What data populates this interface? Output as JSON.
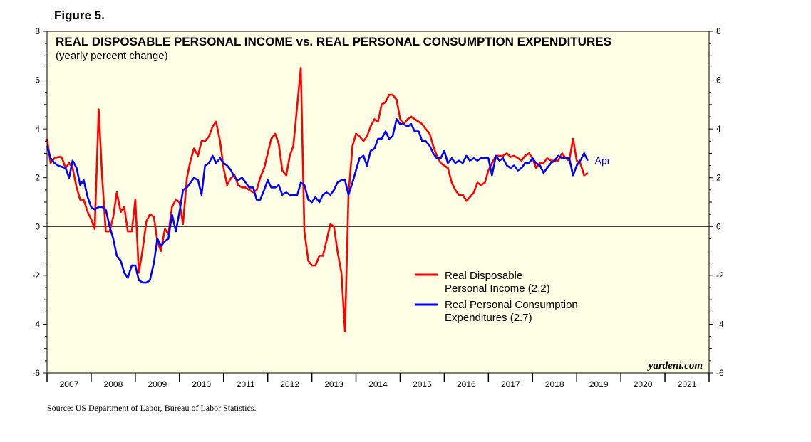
{
  "figure_label": "Figure 5.",
  "source": "Source: US Department of Labor, Bureau of Labor Statistics.",
  "watermark": "yardeni.com",
  "colors": {
    "income": "#ff0000",
    "consumption": "#0000ff",
    "plot_bg": "#ffffe6"
  },
  "chart_data": {
    "type": "line",
    "title": "REAL DISPOSABLE PERSONAL INCOME vs. REAL PERSONAL CONSUMPTION EXPENDITURES",
    "subtitle": "(yearly percent change)",
    "xlabel": "",
    "ylabel": "",
    "xlim": [
      2007.0,
      2022.0
    ],
    "ylim": [
      -6,
      8
    ],
    "y_ticks": [
      -6,
      -4,
      -2,
      0,
      2,
      4,
      6,
      8
    ],
    "x_tick_labels": [
      "2007",
      "2008",
      "2009",
      "2010",
      "2011",
      "2012",
      "2013",
      "2014",
      "2015",
      "2016",
      "2017",
      "2018",
      "2019",
      "2020",
      "2021"
    ],
    "grid": false,
    "zero_line": true,
    "last_point_label": "Apr",
    "legend": [
      {
        "label_line1": "Real Disposable",
        "label_line2": "Personal Income (2.2)"
      },
      {
        "label_line1": "Real Personal Consumption",
        "label_line2": "Expenditures (2.7)"
      }
    ],
    "series": [
      {
        "name": "Real Disposable Personal Income",
        "latest": 2.2,
        "x": [
          2007.0,
          2007.08,
          2007.17,
          2007.25,
          2007.33,
          2007.42,
          2007.5,
          2007.58,
          2007.67,
          2007.75,
          2007.83,
          2007.92,
          2008.0,
          2008.08,
          2008.17,
          2008.25,
          2008.33,
          2008.42,
          2008.5,
          2008.58,
          2008.67,
          2008.75,
          2008.83,
          2008.92,
          2009.0,
          2009.08,
          2009.17,
          2009.25,
          2009.33,
          2009.42,
          2009.5,
          2009.58,
          2009.67,
          2009.75,
          2009.83,
          2009.92,
          2010.0,
          2010.08,
          2010.17,
          2010.25,
          2010.33,
          2010.42,
          2010.5,
          2010.58,
          2010.67,
          2010.75,
          2010.83,
          2010.92,
          2011.0,
          2011.08,
          2011.17,
          2011.25,
          2011.33,
          2011.42,
          2011.5,
          2011.58,
          2011.67,
          2011.75,
          2011.83,
          2011.92,
          2012.0,
          2012.08,
          2012.17,
          2012.25,
          2012.33,
          2012.42,
          2012.5,
          2012.58,
          2012.67,
          2012.75,
          2012.83,
          2012.92,
          2013.0,
          2013.08,
          2013.17,
          2013.25,
          2013.33,
          2013.42,
          2013.5,
          2013.58,
          2013.67,
          2013.75,
          2013.83,
          2013.92,
          2014.0,
          2014.08,
          2014.17,
          2014.25,
          2014.33,
          2014.42,
          2014.5,
          2014.58,
          2014.67,
          2014.75,
          2014.83,
          2014.92,
          2015.0,
          2015.08,
          2015.17,
          2015.25,
          2015.33,
          2015.42,
          2015.5,
          2015.58,
          2015.67,
          2015.75,
          2015.83,
          2015.92,
          2016.0,
          2016.08,
          2016.17,
          2016.25,
          2016.33,
          2016.42,
          2016.5,
          2016.58,
          2016.67,
          2016.75,
          2016.83,
          2016.92,
          2017.0,
          2017.08,
          2017.17,
          2017.25,
          2017.33,
          2017.42,
          2017.5,
          2017.58,
          2017.67,
          2017.75,
          2017.83,
          2017.92,
          2018.0,
          2018.08,
          2018.17,
          2018.25,
          2018.33,
          2018.42,
          2018.5,
          2018.58,
          2018.67,
          2018.75,
          2018.83,
          2018.92,
          2019.0,
          2019.08,
          2019.17,
          2019.25
        ],
        "values": [
          3.6,
          2.6,
          2.8,
          2.85,
          2.85,
          2.4,
          2.6,
          2.4,
          1.6,
          1.1,
          1.1,
          0.6,
          0.3,
          -0.1,
          4.8,
          2.0,
          -0.2,
          -0.2,
          0.4,
          1.4,
          0.6,
          0.8,
          -0.2,
          -0.2,
          1.1,
          -1.9,
          -0.9,
          0.2,
          0.5,
          0.4,
          -0.6,
          -1.0,
          -0.1,
          -0.3,
          0.8,
          1.1,
          1.0,
          0.1,
          2.0,
          2.7,
          3.2,
          2.9,
          3.5,
          3.5,
          3.7,
          4.1,
          4.3,
          3.5,
          2.4,
          1.7,
          2.0,
          2.1,
          1.7,
          1.6,
          1.6,
          1.5,
          1.4,
          1.5,
          2.0,
          2.4,
          3.0,
          3.6,
          3.8,
          3.4,
          2.3,
          2.1,
          2.9,
          3.3,
          5.0,
          6.5,
          -0.2,
          -1.4,
          -1.6,
          -1.6,
          -1.2,
          -1.2,
          -0.6,
          0.1,
          0.0,
          -1.0,
          -1.9,
          -4.3,
          1.3,
          3.3,
          3.8,
          3.7,
          3.5,
          3.7,
          4.1,
          4.4,
          4.3,
          5.0,
          5.1,
          5.4,
          5.4,
          5.2,
          4.4,
          4.2,
          4.4,
          4.5,
          4.4,
          4.3,
          4.2,
          4.0,
          3.8,
          3.3,
          2.9,
          2.6,
          2.5,
          2.4,
          1.8,
          1.5,
          1.3,
          1.3,
          1.05,
          1.2,
          1.4,
          1.8,
          1.7,
          1.8,
          2.3,
          2.6,
          2.9,
          2.9,
          2.9,
          3.0,
          2.85,
          2.9,
          2.8,
          2.7,
          2.9,
          3.0,
          2.8,
          2.4,
          2.6,
          2.6,
          2.8,
          2.7,
          2.7,
          2.7,
          3.0,
          2.8,
          2.7,
          3.6,
          2.7,
          2.6,
          2.1,
          2.2
        ]
      },
      {
        "name": "Real Personal Consumption Expenditures",
        "latest": 2.7,
        "x": [
          2007.0,
          2007.08,
          2007.17,
          2007.25,
          2007.33,
          2007.42,
          2007.5,
          2007.58,
          2007.67,
          2007.75,
          2007.83,
          2007.92,
          2008.0,
          2008.08,
          2008.17,
          2008.25,
          2008.33,
          2008.42,
          2008.5,
          2008.58,
          2008.67,
          2008.75,
          2008.83,
          2008.92,
          2009.0,
          2009.08,
          2009.17,
          2009.25,
          2009.33,
          2009.42,
          2009.5,
          2009.58,
          2009.67,
          2009.75,
          2009.83,
          2009.92,
          2010.0,
          2010.08,
          2010.17,
          2010.25,
          2010.33,
          2010.42,
          2010.5,
          2010.58,
          2010.67,
          2010.75,
          2010.83,
          2010.92,
          2011.0,
          2011.08,
          2011.17,
          2011.25,
          2011.33,
          2011.42,
          2011.5,
          2011.58,
          2011.67,
          2011.75,
          2011.83,
          2011.92,
          2012.0,
          2012.08,
          2012.17,
          2012.25,
          2012.33,
          2012.42,
          2012.5,
          2012.58,
          2012.67,
          2012.75,
          2012.83,
          2012.92,
          2013.0,
          2013.08,
          2013.17,
          2013.25,
          2013.33,
          2013.42,
          2013.5,
          2013.58,
          2013.67,
          2013.75,
          2013.83,
          2013.92,
          2014.0,
          2014.08,
          2014.17,
          2014.25,
          2014.33,
          2014.42,
          2014.5,
          2014.58,
          2014.67,
          2014.75,
          2014.83,
          2014.92,
          2015.0,
          2015.08,
          2015.17,
          2015.25,
          2015.33,
          2015.42,
          2015.5,
          2015.58,
          2015.67,
          2015.75,
          2015.83,
          2015.92,
          2016.0,
          2016.08,
          2016.17,
          2016.25,
          2016.33,
          2016.42,
          2016.5,
          2016.58,
          2016.67,
          2016.75,
          2016.83,
          2016.92,
          2017.0,
          2017.08,
          2017.17,
          2017.25,
          2017.33,
          2017.42,
          2017.5,
          2017.58,
          2017.67,
          2017.75,
          2017.83,
          2017.92,
          2018.0,
          2018.08,
          2018.17,
          2018.25,
          2018.33,
          2018.42,
          2018.5,
          2018.58,
          2018.67,
          2018.75,
          2018.83,
          2018.92,
          2019.0,
          2019.08,
          2019.17,
          2019.25
        ],
        "values": [
          3.3,
          2.8,
          2.6,
          2.5,
          2.45,
          2.4,
          2.0,
          2.7,
          2.4,
          1.7,
          1.9,
          1.2,
          0.8,
          0.7,
          0.8,
          0.8,
          0.7,
          0.0,
          -0.5,
          -1.2,
          -1.4,
          -1.9,
          -2.1,
          -1.6,
          -1.6,
          -2.2,
          -2.3,
          -2.3,
          -2.2,
          -1.5,
          -0.5,
          -0.8,
          -0.6,
          -0.5,
          0.5,
          -0.2,
          0.6,
          1.5,
          1.6,
          1.8,
          2.0,
          1.9,
          1.3,
          2.5,
          2.6,
          2.9,
          2.6,
          2.8,
          2.6,
          2.5,
          2.3,
          2.0,
          1.9,
          2.0,
          1.8,
          1.6,
          1.6,
          1.1,
          1.1,
          1.5,
          1.9,
          1.6,
          1.6,
          1.7,
          1.3,
          1.4,
          1.3,
          1.3,
          1.3,
          1.8,
          1.7,
          1.1,
          1.0,
          1.2,
          1.0,
          1.3,
          1.4,
          1.3,
          1.5,
          1.8,
          1.9,
          1.9,
          1.3,
          1.8,
          2.3,
          2.8,
          2.9,
          2.5,
          3.1,
          3.2,
          3.6,
          3.6,
          3.9,
          3.6,
          3.7,
          4.4,
          4.2,
          4.2,
          4.1,
          4.2,
          3.9,
          3.9,
          3.5,
          3.5,
          3.3,
          3.0,
          2.8,
          2.8,
          3.1,
          2.6,
          2.8,
          2.6,
          2.7,
          2.6,
          2.9,
          2.7,
          2.8,
          2.7,
          2.8,
          2.8,
          2.8,
          2.1,
          2.9,
          2.7,
          2.8,
          2.5,
          2.4,
          2.5,
          2.3,
          2.4,
          2.6,
          2.6,
          2.8,
          2.6,
          2.5,
          2.2,
          2.4,
          2.6,
          2.7,
          2.9,
          2.8,
          2.8,
          2.8,
          2.1,
          2.5,
          2.7,
          3.0,
          2.7
        ]
      }
    ]
  }
}
